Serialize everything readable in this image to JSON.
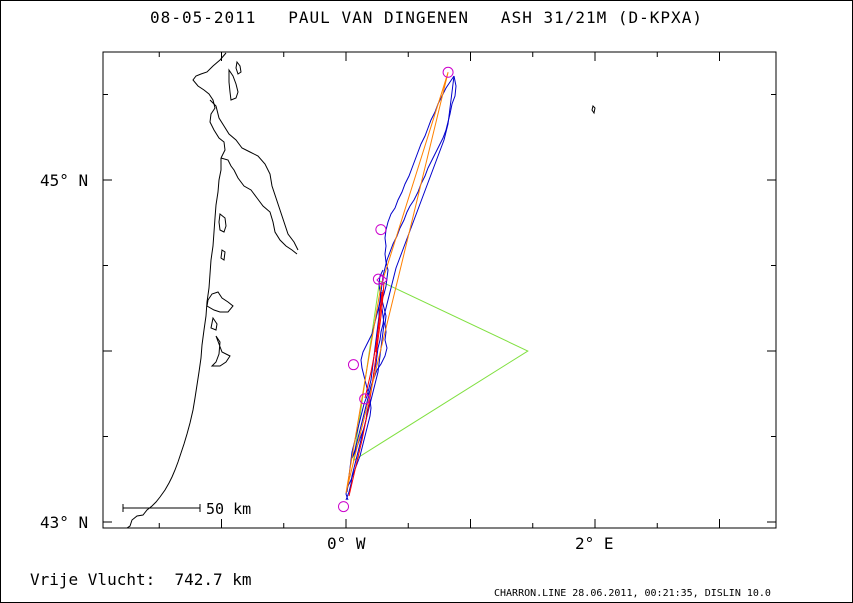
{
  "title": "08-05-2011   PAUL VAN DINGENEN   ASH 31/21M (D-KPXA)",
  "axes": {
    "lat_labels": [
      {
        "lat": 45,
        "text": "45° N"
      },
      {
        "lat": 43,
        "text": "43° N"
      }
    ],
    "lon_labels": [
      {
        "lon": 0,
        "text": "0° W"
      },
      {
        "lon": 2,
        "text": "2° E"
      }
    ]
  },
  "scale_bar": {
    "text": "50 km",
    "km": 50
  },
  "free_flight": "Vrije Vlucht:  742.7 km",
  "credit": "CHARRON.LINE 28.06.2011, 00:21:35, DISLIN 10.0",
  "colors": {
    "frame": "#000000",
    "coast": "#000000",
    "track": "#0000cc",
    "task": "#ff8000",
    "route": "#ff0000",
    "triangle": "#80e040",
    "turnpoints": "#cc00cc"
  },
  "turnpoints": [
    {
      "lon": -0.02,
      "lat": 43.09
    },
    {
      "lon": 0.82,
      "lat": 45.63
    },
    {
      "lon": 0.28,
      "lat": 44.71
    },
    {
      "lon": 0.26,
      "lat": 44.42
    },
    {
      "lon": 0.06,
      "lat": 43.92
    },
    {
      "lon": 0.15,
      "lat": 43.72
    }
  ],
  "task_line": [
    {
      "lon": 0.82,
      "lat": 45.63
    },
    {
      "lon": 0.0,
      "lat": 43.17
    },
    {
      "lon": 0.28,
      "lat": 44.38
    },
    {
      "lon": 0.82,
      "lat": 45.63
    }
  ],
  "triangle": [
    {
      "lon": 0.27,
      "lat": 44.41
    },
    {
      "lon": 1.46,
      "lat": 44.0
    },
    {
      "lon": 0.06,
      "lat": 43.36
    },
    {
      "lon": 0.27,
      "lat": 44.41
    }
  ]
}
